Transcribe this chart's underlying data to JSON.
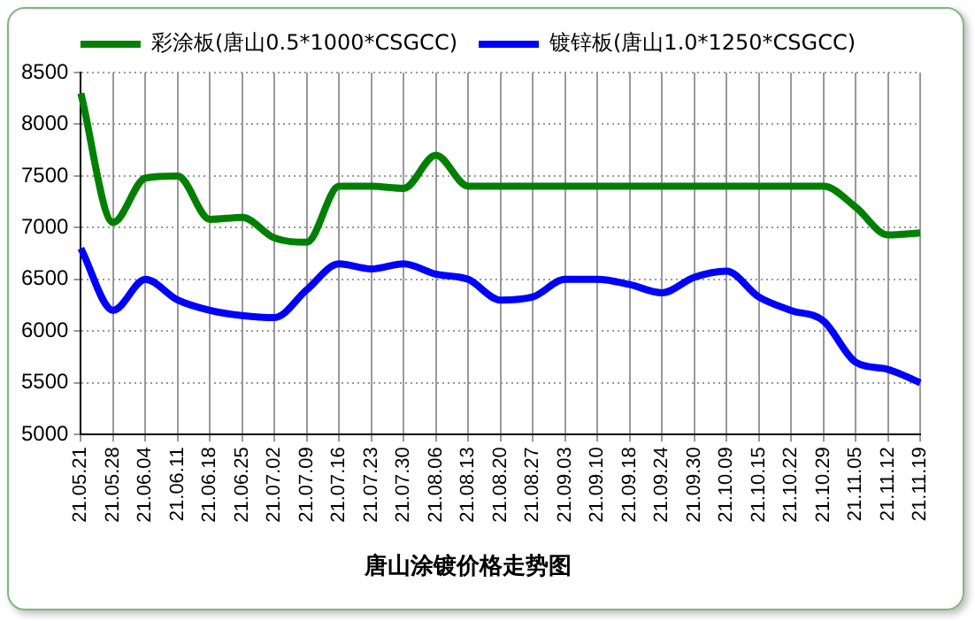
{
  "chart_data": {
    "type": "line",
    "title": "唐山涂镀价格走势图",
    "categories": [
      "21.05.21",
      "21.05.28",
      "21.06.04",
      "21.06.11",
      "21.06.18",
      "21.06.25",
      "21.07.02",
      "21.07.09",
      "21.07.16",
      "21.07.23",
      "21.07.30",
      "21.08.06",
      "21.08.13",
      "21.08.20",
      "21.08.27",
      "21.09.03",
      "21.09.10",
      "21.09.18",
      "21.09.24",
      "21.09.30",
      "21.10.09",
      "21.10.15",
      "21.10.22",
      "21.10.29",
      "21.11.05",
      "21.11.12",
      "21.11.19"
    ],
    "series": [
      {
        "name": "彩涂板(唐山0.5*1000*CSGCC)",
        "color": "#008000",
        "values": [
          8300,
          7050,
          7480,
          7500,
          7080,
          7100,
          6900,
          6860,
          7400,
          7400,
          7380,
          7700,
          7400,
          7400,
          7400,
          7400,
          7400,
          7400,
          7400,
          7400,
          7400,
          7400,
          7400,
          7400,
          7200,
          6930,
          6950
        ]
      },
      {
        "name": "镀锌板(唐山1.0*1250*CSGCC)",
        "color": "#0000ff",
        "values": [
          6800,
          6200,
          6500,
          6300,
          6200,
          6150,
          6130,
          6400,
          6650,
          6600,
          6650,
          6550,
          6500,
          6300,
          6330,
          6500,
          6500,
          6450,
          6370,
          6520,
          6580,
          6330,
          6200,
          6100,
          5700,
          5630,
          5500
        ]
      }
    ],
    "ylim": [
      5000,
      8500
    ],
    "yticks": [
      5000,
      5500,
      6000,
      6500,
      7000,
      7500,
      8000,
      8500
    ],
    "grid": true,
    "legend": "top",
    "marker": "none",
    "line_style": "solid"
  }
}
